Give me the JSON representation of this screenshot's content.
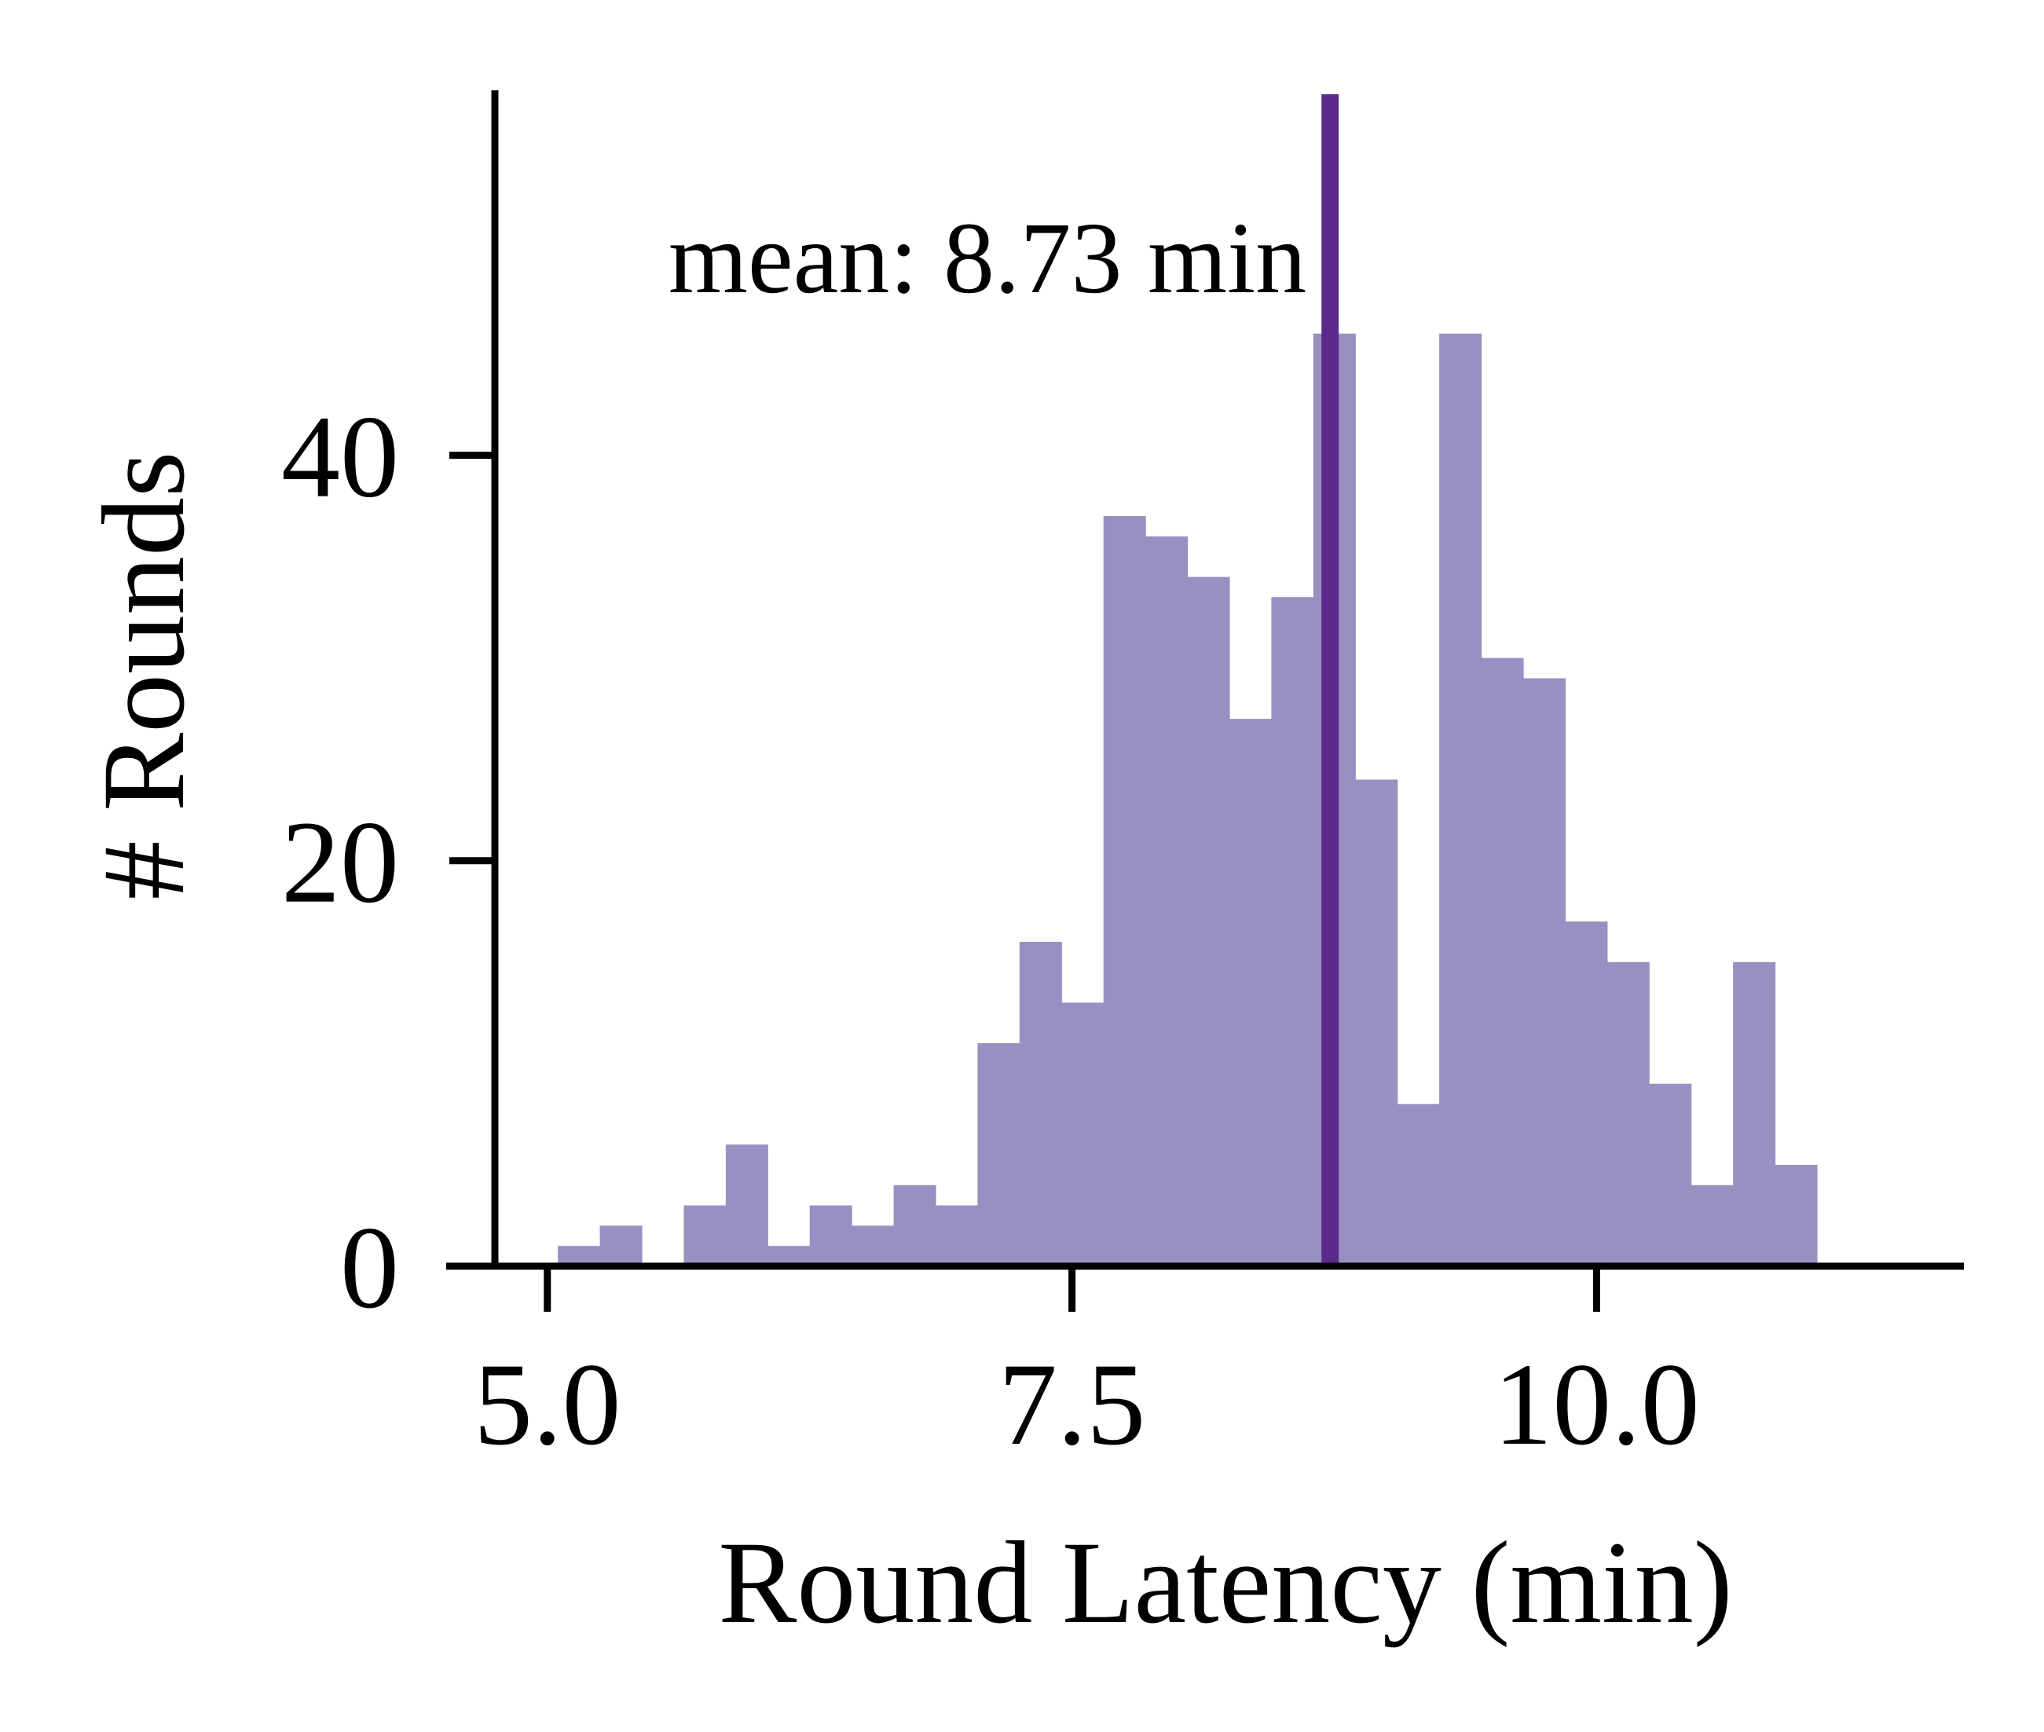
{
  "chart_data": {
    "type": "bar",
    "xlabel": "Round Latency (min)",
    "ylabel": "# Rounds",
    "xlim": [
      4.75,
      11.75
    ],
    "ylim": [
      0,
      58
    ],
    "x_ticks": [
      5.0,
      7.5,
      10.0
    ],
    "x_tick_labels": [
      "5.0",
      "7.5",
      "10.0"
    ],
    "y_ticks": [
      0,
      20,
      40
    ],
    "y_tick_labels": [
      "0",
      "20",
      "40"
    ],
    "grid": false,
    "bin_width": 0.2,
    "bins": [
      {
        "x0": 5.05,
        "x1": 5.25,
        "count": 1
      },
      {
        "x0": 5.25,
        "x1": 5.45,
        "count": 2
      },
      {
        "x0": 5.45,
        "x1": 5.65,
        "count": 0
      },
      {
        "x0": 5.65,
        "x1": 5.85,
        "count": 3
      },
      {
        "x0": 5.85,
        "x1": 6.05,
        "count": 6
      },
      {
        "x0": 6.05,
        "x1": 6.25,
        "count": 1
      },
      {
        "x0": 6.25,
        "x1": 6.45,
        "count": 3
      },
      {
        "x0": 6.45,
        "x1": 6.65,
        "count": 2
      },
      {
        "x0": 6.65,
        "x1": 6.85,
        "count": 4
      },
      {
        "x0": 6.85,
        "x1": 7.05,
        "count": 3
      },
      {
        "x0": 7.05,
        "x1": 7.25,
        "count": 11
      },
      {
        "x0": 7.25,
        "x1": 7.45,
        "count": 16
      },
      {
        "x0": 7.45,
        "x1": 7.65,
        "count": 13
      },
      {
        "x0": 7.65,
        "x1": 7.85,
        "count": 37
      },
      {
        "x0": 7.85,
        "x1": 8.05,
        "count": 36
      },
      {
        "x0": 8.05,
        "x1": 8.25,
        "count": 34
      },
      {
        "x0": 8.25,
        "x1": 8.45,
        "count": 27
      },
      {
        "x0": 8.45,
        "x1": 8.65,
        "count": 33
      },
      {
        "x0": 8.65,
        "x1": 8.85,
        "count": 46
      },
      {
        "x0": 8.85,
        "x1": 9.05,
        "count": 24
      },
      {
        "x0": 9.05,
        "x1": 9.25,
        "count": 8
      },
      {
        "x0": 9.25,
        "x1": 9.45,
        "count": 46
      },
      {
        "x0": 9.45,
        "x1": 9.65,
        "count": 30
      },
      {
        "x0": 9.65,
        "x1": 9.85,
        "count": 29
      },
      {
        "x0": 9.85,
        "x1": 10.05,
        "count": 17
      },
      {
        "x0": 10.05,
        "x1": 10.25,
        "count": 15
      },
      {
        "x0": 10.25,
        "x1": 10.45,
        "count": 9
      },
      {
        "x0": 10.45,
        "x1": 10.65,
        "count": 4
      },
      {
        "x0": 10.65,
        "x1": 10.85,
        "count": 15
      },
      {
        "x0": 10.85,
        "x1": 11.05,
        "count": 5
      }
    ],
    "mean_line": {
      "value": 8.73,
      "label": "mean: 8.73 min"
    },
    "colors": {
      "bars": "#9a8fc3",
      "mean_line": "#5a2a8c",
      "axis": "#000000"
    }
  }
}
